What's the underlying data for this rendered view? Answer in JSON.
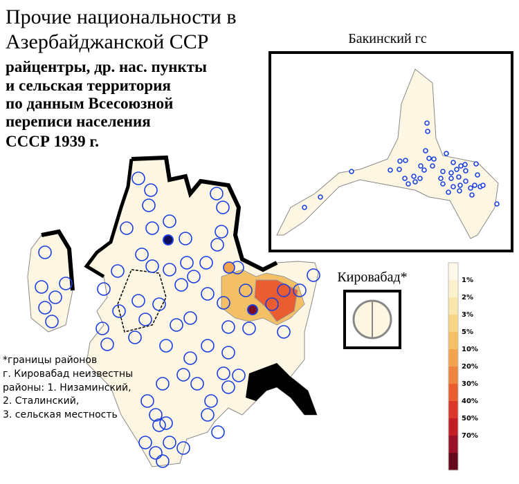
{
  "title": [
    "Прочие национальности в",
    "Азербайджанской ССР"
  ],
  "subtitle": [
    "райцентры, др. нас. пункты",
    "и сельская территория",
    "по данным Всесоюзной",
    "переписи населения",
    "СССР 1939 г."
  ],
  "inset": {
    "title": "Бакинский гс"
  },
  "kirovabad": {
    "label": "Кировабад*"
  },
  "notes": [
    "*границы районов",
    "г. Кировабад неизвестны",
    "районы: 1. Низаминский,",
    "2. Сталинский,",
    "3. сельская местность"
  ],
  "legend": {
    "labels": [
      "1%",
      "2%",
      "3%",
      "5%",
      "10%",
      "20%",
      "30%",
      "40%",
      "50%",
      "70%"
    ],
    "colors": [
      "#fdf8e7",
      "#fbf1cf",
      "#f9e6aa",
      "#f7d787",
      "#f4c066",
      "#f1a34f",
      "#ee843d",
      "#e95d30",
      "#dc352a",
      "#c21c25",
      "#991028",
      "#66081c"
    ]
  }
}
